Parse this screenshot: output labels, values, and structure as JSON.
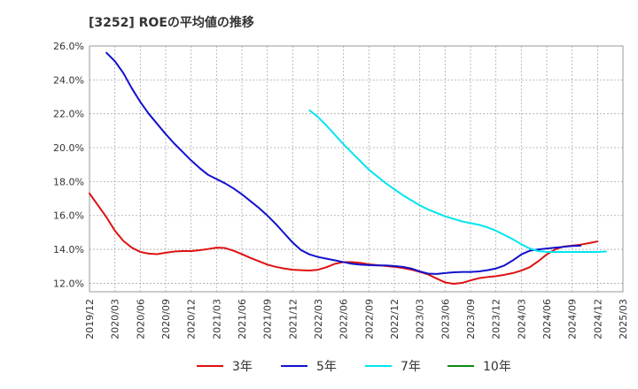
{
  "chart_data": {
    "type": "line",
    "title": "[3252]  ROEの平均値の推移",
    "xlabel": "",
    "ylabel": "",
    "ylim": [
      11.5,
      26.0
    ],
    "y_ticks": [
      12,
      14,
      16,
      18,
      20,
      22,
      24,
      26
    ],
    "y_tick_labels": [
      "12.0%",
      "14.0%",
      "16.0%",
      "18.0%",
      "20.0%",
      "22.0%",
      "24.0%",
      "26.0%"
    ],
    "x_start": "2019-12",
    "x_end": "2025-03",
    "x_tick_labels": [
      "2019/12",
      "2020/03",
      "2020/06",
      "2020/09",
      "2020/12",
      "2021/03",
      "2021/06",
      "2021/09",
      "2021/12",
      "2022/03",
      "2022/06",
      "2022/09",
      "2022/12",
      "2023/03",
      "2023/06",
      "2023/09",
      "2023/12",
      "2024/03",
      "2024/06",
      "2024/09",
      "2024/12",
      "2025/03"
    ],
    "grid": true,
    "legend_position": "bottom",
    "series": [
      {
        "name": "3年",
        "color": "#dd1111",
        "start": "2019-12",
        "values": [
          17.3,
          16.6,
          15.9,
          15.1,
          14.5,
          14.1,
          13.85,
          13.75,
          13.72,
          13.8,
          13.87,
          13.9,
          13.9,
          13.95,
          14.02,
          14.1,
          14.08,
          13.92,
          13.72,
          13.5,
          13.3,
          13.1,
          12.97,
          12.87,
          12.8,
          12.77,
          12.75,
          12.8,
          12.95,
          13.15,
          13.25,
          13.25,
          13.2,
          13.12,
          13.07,
          13.02,
          12.97,
          12.9,
          12.8,
          12.68,
          12.52,
          12.28,
          12.05,
          11.97,
          12.02,
          12.17,
          12.3,
          12.37,
          12.42,
          12.5,
          12.6,
          12.75,
          12.95,
          13.3,
          13.7,
          14.0,
          14.17,
          14.22,
          14.28,
          14.37,
          14.47
        ]
      },
      {
        "name": "5年",
        "color": "#1111cc",
        "start": "2020-02",
        "values": [
          25.6,
          25.1,
          24.4,
          23.5,
          22.7,
          22.0,
          21.4,
          20.8,
          20.25,
          19.75,
          19.25,
          18.8,
          18.4,
          18.15,
          17.9,
          17.6,
          17.25,
          16.85,
          16.45,
          16.0,
          15.5,
          14.95,
          14.4,
          13.95,
          13.7,
          13.55,
          13.45,
          13.35,
          13.25,
          13.15,
          13.1,
          13.07,
          13.05,
          13.05,
          13.02,
          12.97,
          12.87,
          12.7,
          12.57,
          12.55,
          12.6,
          12.65,
          12.67,
          12.67,
          12.7,
          12.77,
          12.87,
          13.05,
          13.35,
          13.7,
          13.92,
          14.0,
          14.05,
          14.1,
          14.15,
          14.2,
          14.22
        ]
      },
      {
        "name": "7年",
        "color": "#00e5ee",
        "start": "2022-02",
        "values": [
          22.2,
          21.8,
          21.3,
          20.75,
          20.2,
          19.7,
          19.2,
          18.7,
          18.3,
          17.9,
          17.55,
          17.2,
          16.9,
          16.6,
          16.35,
          16.15,
          15.95,
          15.8,
          15.65,
          15.55,
          15.45,
          15.3,
          15.1,
          14.85,
          14.6,
          14.3,
          14.05,
          13.9,
          13.85,
          13.85,
          13.85,
          13.85,
          13.85,
          13.85,
          13.85,
          13.87
        ]
      },
      {
        "name": "10年",
        "color": "#118811",
        "start": "2025-03",
        "values": []
      }
    ]
  }
}
